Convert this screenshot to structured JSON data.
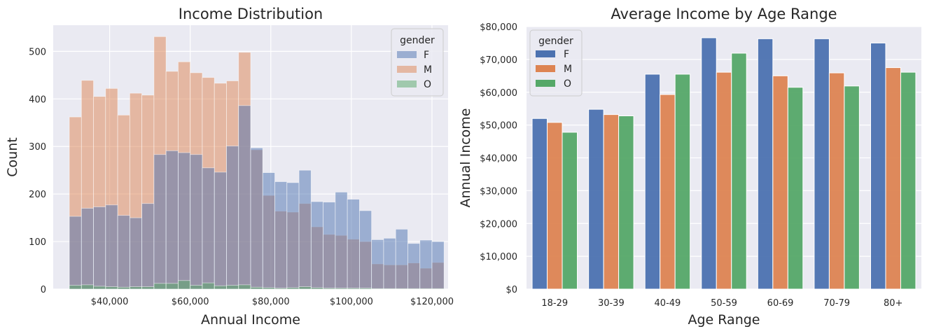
{
  "chart_data": [
    {
      "type": "bar",
      "subtype": "histogram",
      "title": "Income Distribution",
      "xlabel": "Annual Income",
      "ylabel": "Count",
      "xlim": [
        26000,
        124000
      ],
      "ylim": [
        0,
        555
      ],
      "x_ticks": [
        40000,
        60000,
        80000,
        100000,
        120000
      ],
      "x_tick_labels": [
        "$40,000",
        "$60,000",
        "$80,000",
        "$100,000",
        "$120,000"
      ],
      "y_ticks": [
        0,
        100,
        200,
        300,
        400,
        500
      ],
      "y_tick_labels": [
        "0",
        "100",
        "200",
        "300",
        "400",
        "500"
      ],
      "grid": true,
      "legend": {
        "title": "gender",
        "placement": "top-right",
        "entries": [
          "F",
          "M",
          "O"
        ]
      },
      "bin_start": 30000,
      "bin_width": 3000,
      "series": [
        {
          "name": "F",
          "color": "#4c72b0",
          "values": [
            153,
            170,
            173,
            177,
            155,
            150,
            180,
            283,
            291,
            287,
            283,
            255,
            246,
            301,
            386,
            297,
            245,
            226,
            224,
            250,
            184,
            183,
            204,
            189,
            165,
            104,
            107,
            126,
            96,
            103,
            100
          ]
        },
        {
          "name": "M",
          "color": "#dd8452",
          "values": [
            362,
            439,
            405,
            422,
            366,
            412,
            408,
            531,
            458,
            478,
            455,
            445,
            433,
            438,
            498,
            293,
            197,
            164,
            162,
            180,
            131,
            115,
            113,
            105,
            100,
            53,
            51,
            51,
            55,
            44,
            56
          ]
        },
        {
          "name": "O",
          "color": "#55a868",
          "values": [
            8,
            9,
            6,
            5,
            4,
            5,
            5,
            12,
            12,
            18,
            8,
            13,
            7,
            8,
            9,
            4,
            3,
            2,
            3,
            5,
            3,
            2,
            2,
            2,
            2,
            1,
            1,
            1,
            1,
            1,
            1
          ]
        }
      ]
    },
    {
      "type": "bar",
      "title": "Average Income by Age Range",
      "xlabel": "Age Range",
      "ylabel": "Annual Income",
      "categories": [
        "18-29",
        "30-39",
        "40-49",
        "50-59",
        "60-69",
        "70-79",
        "80+"
      ],
      "ylim": [
        0,
        80000
      ],
      "y_ticks": [
        0,
        10000,
        20000,
        30000,
        40000,
        50000,
        60000,
        70000,
        80000
      ],
      "y_tick_labels": [
        "$0",
        "$10,000",
        "$20,000",
        "$30,000",
        "$40,000",
        "$50,000",
        "$60,000",
        "$70,000",
        "$80,000"
      ],
      "grid": true,
      "legend": {
        "title": "gender",
        "placement": "top-left",
        "entries": [
          "F",
          "M",
          "O"
        ]
      },
      "series": [
        {
          "name": "F",
          "color": "#4c72b0",
          "values": [
            52000,
            54800,
            65500,
            76600,
            76300,
            76300,
            75000
          ]
        },
        {
          "name": "M",
          "color": "#dd8452",
          "values": [
            50800,
            53200,
            59300,
            66100,
            65000,
            65900,
            67500
          ]
        },
        {
          "name": "O",
          "color": "#55a868",
          "values": [
            47800,
            52800,
            65500,
            71900,
            61500,
            61900,
            66100
          ]
        }
      ]
    }
  ]
}
